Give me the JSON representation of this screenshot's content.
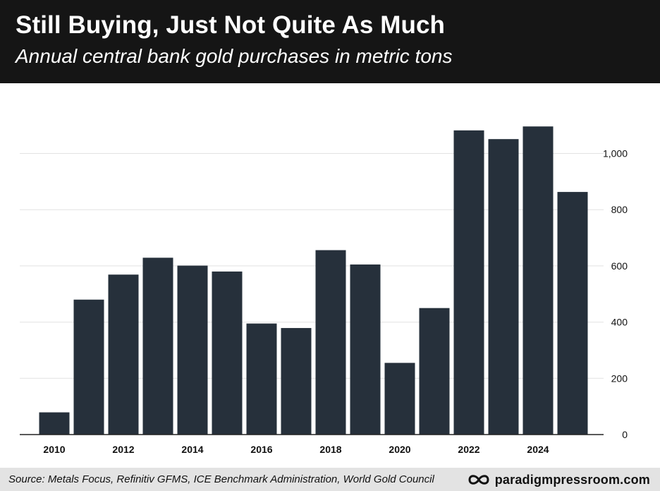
{
  "header": {
    "title": "Still Buying, Just Not Quite As Much",
    "subtitle": "Annual central bank gold purchases in metric tons"
  },
  "footer": {
    "source": "Source: Metals Focus, Refinitiv GFMS, ICE Benchmark Administration, World Gold Council",
    "brand": "paradigmpressroom.com",
    "brand_icon": "infinity-icon"
  },
  "colors": {
    "bar": "#26303b",
    "header_bg": "#151515",
    "grid": "#e2e2e2",
    "axis": "#222222"
  },
  "chart_data": {
    "type": "bar",
    "title": "Still Buying, Just Not Quite As Much",
    "subtitle": "Annual central bank gold purchases in metric tons",
    "categories": [
      "2010",
      "2011",
      "2012",
      "2013",
      "2014",
      "2015",
      "2016",
      "2017",
      "2018",
      "2019",
      "2020",
      "2021",
      "2022",
      "2023",
      "2024",
      "2025"
    ],
    "values": [
      79,
      480,
      569,
      629,
      601,
      580,
      395,
      379,
      656,
      605,
      255,
      450,
      1082,
      1051,
      1096,
      863
    ],
    "x_tick_labels": [
      "2010",
      "2012",
      "2014",
      "2016",
      "2018",
      "2020",
      "2022",
      "2024"
    ],
    "y_ticks": [
      0,
      200,
      400,
      600,
      800,
      1000
    ],
    "y_tick_labels": [
      "0",
      "200",
      "400",
      "600",
      "800",
      "1,000"
    ],
    "ylim": [
      0,
      1140
    ],
    "yaxis_position": "right",
    "grid": true,
    "xlabel": "",
    "ylabel": ""
  }
}
